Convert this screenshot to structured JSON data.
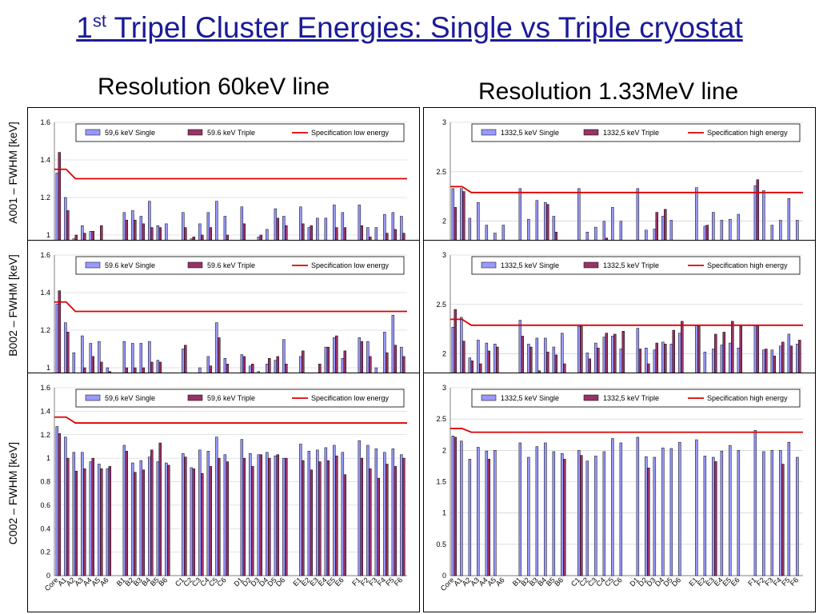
{
  "title": {
    "main": "Tripel Cluster Energies: Single vs Triple cryostat",
    "num": "1",
    "sup": "st"
  },
  "subtitles": {
    "left": "Resolution 60keV line",
    "right": "Resolution 1.33MeV line"
  },
  "row_labels": [
    "A001 – FWHM [keV]",
    "B002 – FWHM [keV]",
    "C002 – FWHM [keV]"
  ],
  "colors": {
    "single": "#9999ff",
    "triple": "#993366",
    "spec": "#dd0000",
    "title": "#1a1a99"
  },
  "chart_data": [
    {
      "id": "A001-60keV",
      "type": "bar",
      "ylim": [
        0.6,
        1.6
      ],
      "ticks": [
        "0.8",
        "1",
        "1.2",
        "1.4",
        "1.6"
      ],
      "tick_values": [
        0.8,
        1.0,
        1.2,
        1.4,
        1.6
      ],
      "legend": [
        "59,6 keV Single",
        "59.6 keV Triple",
        "Specification low energy"
      ],
      "categories": [
        "Core",
        "A1",
        "A2",
        "A3",
        "A4",
        "A5",
        "A6",
        "",
        "B1",
        "B2",
        "B3",
        "B4",
        "B5",
        "B6",
        "",
        "C1",
        "C2",
        "C3",
        "C4",
        "C5",
        "C6",
        "",
        "D1",
        "D2",
        "D3",
        "D4",
        "D5",
        "D6",
        "",
        "E1",
        "E2",
        "E3",
        "E4",
        "E5",
        "E6",
        "",
        "F1",
        "F2",
        "F3",
        "F4",
        "F5",
        "F6"
      ],
      "series": [
        {
          "name": "59,6 keV Single",
          "values": [
            1.33,
            1.2,
            0.98,
            1.05,
            1.02,
            0.95,
            0.92,
            null,
            1.12,
            1.13,
            1.1,
            1.18,
            1.05,
            1.06,
            null,
            1.12,
            0.98,
            1.06,
            1.12,
            1.18,
            1.1,
            null,
            1.15,
            0.97,
            0.99,
            1.03,
            1.14,
            1.1,
            null,
            1.15,
            1.04,
            1.09,
            1.09,
            1.16,
            1.12,
            null,
            1.16,
            1.04,
            1.04,
            1.11,
            1.12,
            1.1
          ]
        },
        {
          "name": "59.6 keV Triple",
          "values": [
            1.44,
            1.13,
            1.0,
            1.01,
            1.02,
            1.05,
            0.97,
            null,
            1.08,
            1.08,
            1.06,
            1.04,
            1.04,
            0.96,
            null,
            1.04,
            0.99,
            1.0,
            1.04,
            0.89,
            1.0,
            null,
            1.06,
            0.97,
            1.0,
            0.97,
            1.09,
            1.05,
            null,
            1.06,
            1.05,
            0.96,
            0.93,
            1.04,
            1.04,
            null,
            1.05,
            0.99,
            0.92,
            1.01,
            1.03,
            1.01
          ]
        }
      ],
      "spec": [
        1.35,
        1.35,
        1.3,
        1.3
      ]
    },
    {
      "id": "A001-1.33MeV",
      "type": "bar",
      "ylim": [
        1.1,
        3.0
      ],
      "ticks": [
        "1.5",
        "2",
        "2.5",
        "3"
      ],
      "tick_values": [
        1.5,
        2.0,
        2.5,
        3.0
      ],
      "legend": [
        "1332,5 keV Single",
        "1332,5 keV Triple",
        "Specification high energy"
      ],
      "categories": [
        "Core",
        "A1",
        "A2",
        "A3",
        "A4",
        "A5",
        "A6",
        "",
        "B1",
        "B2",
        "B3",
        "B4",
        "B5",
        "B6",
        "",
        "C1",
        "C2",
        "C3",
        "C4",
        "C5",
        "C6",
        "",
        "D1",
        "D2",
        "D3",
        "D4",
        "D5",
        "D6",
        "",
        "E1",
        "E2",
        "E3",
        "E4",
        "E5",
        "E6",
        "",
        "F1",
        "F2",
        "F3",
        "F4",
        "F5",
        "F6"
      ],
      "series": [
        {
          "name": "1332,5 keV Single",
          "values": [
            2.33,
            2.33,
            2.03,
            2.19,
            1.96,
            1.88,
            1.96,
            null,
            2.33,
            2.02,
            2.21,
            2.19,
            2.05,
            null,
            null,
            2.33,
            1.89,
            1.94,
            2.0,
            2.14,
            2.0,
            null,
            2.33,
            1.91,
            1.92,
            2.05,
            2.01,
            null,
            null,
            2.34,
            1.95,
            2.09,
            2.01,
            2.02,
            2.07,
            null,
            2.36,
            2.31,
            1.96,
            2.01,
            2.23,
            2.01
          ]
        },
        {
          "name": "1332,5 keV Triple",
          "values": [
            2.14,
            2.3,
            null,
            null,
            null,
            null,
            1.72,
            null,
            null,
            null,
            null,
            2.17,
            1.89,
            null,
            null,
            null,
            null,
            null,
            1.83,
            null,
            null,
            null,
            null,
            null,
            2.09,
            2.12,
            null,
            null,
            null,
            null,
            1.96,
            null,
            null,
            null,
            null,
            null,
            2.42,
            null,
            null,
            null,
            null,
            null
          ]
        }
      ],
      "spec": [
        2.35,
        2.35,
        2.29,
        2.29
      ]
    },
    {
      "id": "B002-60keV",
      "type": "bar",
      "ylim": [
        0.6,
        1.6
      ],
      "ticks": [
        "0.8",
        "1",
        "1.2",
        "1.4",
        "1.6"
      ],
      "tick_values": [
        0.8,
        1.0,
        1.2,
        1.4,
        1.6
      ],
      "legend": [
        "59.6 keV Single",
        "59.6 keV Triple",
        "Specification low energy"
      ],
      "categories": [
        "Core",
        "A1",
        "A2",
        "A3",
        "A4",
        "A5",
        "A6",
        "",
        "B1",
        "B2",
        "B3",
        "B4",
        "B5",
        "B6",
        "",
        "C1",
        "C2",
        "C3",
        "C4",
        "C5",
        "C6",
        "",
        "D1",
        "D2",
        "D3",
        "D4",
        "D5",
        "D6",
        "",
        "E1",
        "E2",
        "E3",
        "E4",
        "E5",
        "E6",
        "",
        "F1",
        "F2",
        "F3",
        "F4",
        "F5",
        "F6"
      ],
      "series": [
        {
          "name": "59.6 keV Single",
          "values": [
            1.34,
            1.24,
            1.08,
            1.17,
            1.13,
            1.14,
            1.0,
            null,
            1.14,
            1.13,
            1.13,
            1.14,
            1.04,
            0.95,
            null,
            1.1,
            0.93,
            1.0,
            1.06,
            1.24,
            1.05,
            null,
            1.07,
            1.01,
            0.98,
            1.02,
            1.04,
            1.15,
            null,
            1.06,
            0.96,
            0.96,
            1.11,
            1.16,
            1.05,
            null,
            1.16,
            1.14,
            1.0,
            1.19,
            1.28,
            1.11
          ]
        },
        {
          "name": "59.6 keV Triple",
          "values": [
            1.41,
            1.19,
            0.97,
            1.0,
            1.06,
            1.03,
            0.98,
            null,
            1.0,
            1.0,
            1.0,
            1.03,
            1.03,
            0.95,
            null,
            1.12,
            0.97,
            0.96,
            1.01,
            1.16,
            1.02,
            null,
            1.06,
            1.02,
            0.94,
            1.05,
            1.06,
            1.02,
            null,
            1.09,
            0.95,
            1.02,
            1.11,
            1.17,
            1.09,
            null,
            1.14,
            1.06,
            0.92,
            1.08,
            1.12,
            1.06
          ]
        }
      ],
      "spec": [
        1.35,
        1.35,
        1.3,
        1.3
      ]
    },
    {
      "id": "B002-1.33MeV",
      "type": "bar",
      "ylim": [
        1.1,
        3.0
      ],
      "ticks": [
        "1.5",
        "2",
        "2.5",
        "3"
      ],
      "tick_values": [
        1.5,
        2.0,
        2.5,
        3.0
      ],
      "legend": [
        "1332,5 keV Single",
        "1332,5 keV Triple",
        "Specification high energy"
      ],
      "categories": [
        "Core",
        "A1",
        "A2",
        "A3",
        "A4",
        "A5",
        "A6",
        "",
        "B1",
        "B2",
        "B3",
        "B4",
        "B5",
        "B6",
        "",
        "C1",
        "C2",
        "C3",
        "C4",
        "C5",
        "C6",
        "",
        "D1",
        "D2",
        "D3",
        "D4",
        "D5",
        "D6",
        "",
        "E1",
        "E2",
        "E3",
        "E4",
        "E5",
        "E6",
        "",
        "F1",
        "F2",
        "F3",
        "F4",
        "F5",
        "F6"
      ],
      "series": [
        {
          "name": "1332,5 keV Single",
          "values": [
            2.27,
            2.37,
            1.96,
            2.14,
            2.11,
            2.1,
            null,
            null,
            2.34,
            2.1,
            2.16,
            2.16,
            2.07,
            2.21,
            null,
            2.28,
            2.01,
            2.11,
            2.17,
            2.18,
            2.05,
            null,
            2.26,
            2.06,
            2.04,
            2.12,
            2.1,
            2.21,
            null,
            2.29,
            2.02,
            2.05,
            2.09,
            2.11,
            2.06,
            null,
            2.29,
            2.04,
            2.04,
            2.08,
            2.2,
            2.1
          ]
        },
        {
          "name": "1332,5 keV Triple",
          "values": [
            2.45,
            2.13,
            1.93,
            1.9,
            2.03,
            2.07,
            null,
            null,
            2.18,
            2.07,
            1.83,
            2.02,
            1.99,
            1.9,
            null,
            2.28,
            1.95,
            2.06,
            2.21,
            2.2,
            2.23,
            null,
            2.05,
            1.9,
            2.11,
            2.1,
            2.24,
            2.33,
            null,
            2.28,
            1.79,
            2.2,
            2.22,
            2.33,
            2.28,
            null,
            2.29,
            2.05,
            1.98,
            2.12,
            2.08,
            2.14
          ]
        }
      ],
      "spec": [
        2.35,
        2.35,
        2.29,
        2.29
      ]
    },
    {
      "id": "C002-60keV",
      "type": "bar",
      "ylim": [
        0,
        1.6
      ],
      "ticks": [
        "0",
        "0.2",
        "0.4",
        "0.6",
        "0.8",
        "1",
        "1.2",
        "1.4",
        "1.6"
      ],
      "tick_values": [
        0,
        0.2,
        0.4,
        0.6,
        0.8,
        1.0,
        1.2,
        1.4,
        1.6
      ],
      "legend": [
        "59,6 keV Single",
        "59,6 keV Triple",
        "Specification low energy"
      ],
      "categories": [
        "Core",
        "A1",
        "A2",
        "A3",
        "A4",
        "A5",
        "A6",
        "",
        "B1",
        "B2",
        "B3",
        "B4",
        "B5",
        "B6",
        "",
        "C1",
        "C2",
        "C3",
        "C4",
        "C5",
        "C6",
        "",
        "D1",
        "D2",
        "D3",
        "D4",
        "D5",
        "D6",
        "",
        "E1",
        "E2",
        "E3",
        "E4",
        "E5",
        "E6",
        "",
        "F1",
        "F2",
        "F3",
        "F4",
        "F5",
        "F6"
      ],
      "series": [
        {
          "name": "59,6 keV Single",
          "values": [
            1.27,
            1.18,
            1.05,
            1.05,
            0.97,
            0.95,
            0.91,
            null,
            1.11,
            0.96,
            0.98,
            1.01,
            0.97,
            0.96,
            null,
            1.04,
            0.92,
            1.07,
            1.06,
            1.18,
            1.03,
            null,
            1.16,
            1.04,
            1.03,
            1.05,
            1.02,
            1.0,
            null,
            1.12,
            1.06,
            1.07,
            1.09,
            1.11,
            1.05,
            null,
            1.15,
            1.11,
            1.08,
            1.05,
            1.08,
            1.03
          ]
        },
        {
          "name": "59,6 keV Triple",
          "values": [
            1.21,
            1.0,
            0.89,
            0.91,
            1.0,
            0.91,
            0.93,
            null,
            1.06,
            0.88,
            0.9,
            1.07,
            1.13,
            0.94,
            null,
            1.01,
            0.91,
            0.87,
            0.93,
            1.0,
            0.97,
            null,
            1.0,
            0.93,
            1.03,
            1.0,
            1.03,
            1.0,
            null,
            0.98,
            0.9,
            0.97,
            0.98,
            1.02,
            0.86,
            null,
            1.0,
            0.91,
            0.83,
            0.95,
            0.93,
            1.0
          ]
        }
      ],
      "spec": [
        1.35,
        1.35,
        1.3,
        1.3
      ]
    },
    {
      "id": "C002-1.33MeV",
      "type": "bar",
      "ylim": [
        0,
        3.0
      ],
      "ticks": [
        "0",
        "0.5",
        "1",
        "1.5",
        "2",
        "2.5",
        "3"
      ],
      "tick_values": [
        0,
        0.5,
        1.0,
        1.5,
        2.0,
        2.5,
        3.0
      ],
      "legend": [
        "1332,5 keV Single",
        "1332,5 keV Triple",
        "Specification high energy"
      ],
      "categories": [
        "Core",
        "A1",
        "A2",
        "A3",
        "A4",
        "A5",
        "A6",
        "",
        "B1",
        "B2",
        "B3",
        "B4",
        "B5",
        "B6",
        "",
        "C1",
        "C2",
        "C3",
        "C4",
        "C5",
        "C6",
        "",
        "D1",
        "D2",
        "D3",
        "D4",
        "D5",
        "D6",
        "",
        "E1",
        "E2",
        "E3",
        "E4",
        "E5",
        "E6",
        "",
        "F1",
        "F2",
        "F3",
        "F4",
        "F5",
        "F6"
      ],
      "series": [
        {
          "name": "1332,5 keV Single",
          "values": [
            2.23,
            2.15,
            1.86,
            2.05,
            1.99,
            2.0,
            null,
            null,
            2.12,
            1.89,
            2.06,
            2.12,
            1.98,
            1.95,
            null,
            2.0,
            1.83,
            1.91,
            1.98,
            2.19,
            2.12,
            null,
            2.21,
            1.9,
            1.89,
            2.04,
            2.03,
            2.13,
            null,
            2.17,
            1.91,
            1.89,
            1.99,
            2.08,
            2.0,
            null,
            2.32,
            1.98,
            2.0,
            2.0,
            2.13,
            1.89
          ]
        },
        {
          "name": "1332,5 keV Triple",
          "values": [
            2.21,
            null,
            null,
            null,
            1.86,
            null,
            null,
            null,
            null,
            null,
            null,
            null,
            null,
            1.86,
            null,
            1.92,
            null,
            null,
            null,
            null,
            null,
            null,
            null,
            1.72,
            null,
            null,
            null,
            null,
            null,
            null,
            null,
            1.82,
            null,
            null,
            null,
            null,
            null,
            null,
            null,
            1.78,
            null,
            null
          ]
        }
      ],
      "spec": [
        2.35,
        2.35,
        2.29,
        2.29
      ]
    }
  ]
}
